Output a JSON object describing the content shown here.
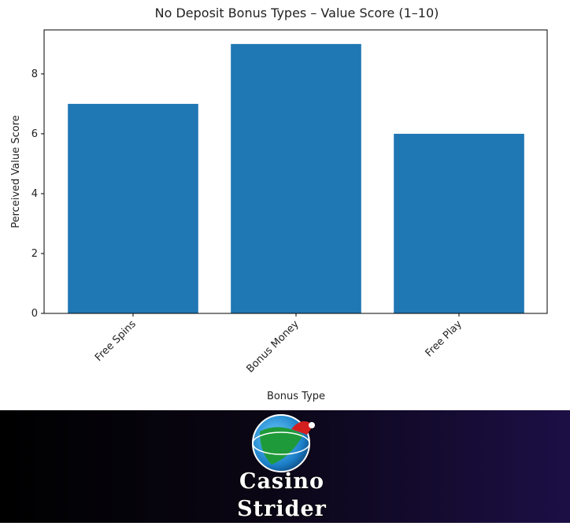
{
  "chart_data": {
    "type": "bar",
    "title": "No Deposit Bonus Types – Value Score (1–10)",
    "x_label": "Bonus Type",
    "y_label": "Perceived Value Score",
    "categories": [
      "Free Spins",
      "Bonus Money",
      "Free Play"
    ],
    "values": [
      7,
      9,
      6
    ],
    "color": "#1f77b4",
    "ylim": [
      0,
      9.47
    ],
    "yticks": [
      0,
      2,
      4,
      6,
      8
    ]
  },
  "footer": {
    "brand_lines": [
      "Casino",
      "Strider"
    ]
  }
}
